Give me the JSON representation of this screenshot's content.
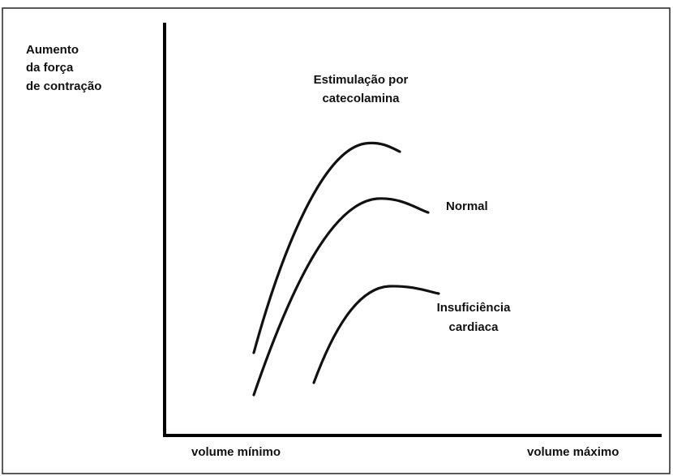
{
  "y_axis_label": [
    "Aumento",
    "da força",
    "de contração"
  ],
  "curves": [
    {
      "label": [
        "Estimulação por",
        "catecolamina"
      ]
    },
    {
      "label": [
        "Normal"
      ]
    },
    {
      "label": [
        "Insuficiência",
        "cardiaca"
      ]
    }
  ],
  "x_axis_labels": [
    "volume mínimo",
    "volume máximo"
  ]
}
